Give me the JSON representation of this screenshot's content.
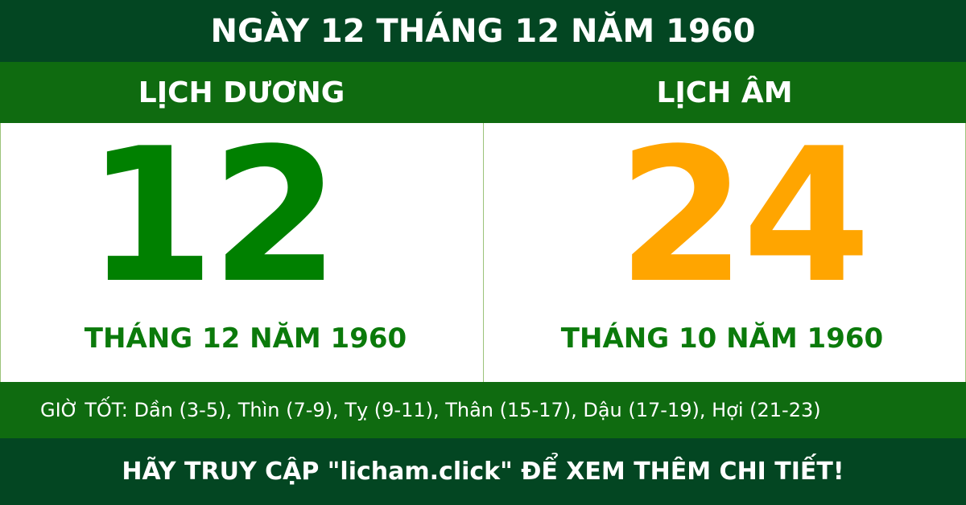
{
  "title": "NGÀY 12 THÁNG 12 NĂM 1960",
  "solar": {
    "label": "LỊCH DƯƠNG",
    "day": "12",
    "month_year": "THÁNG 12 NĂM 1960"
  },
  "lunar": {
    "label": "LỊCH ÂM",
    "day": "24",
    "month_year": "THÁNG 10 NĂM 1960"
  },
  "good_hours": "GIỜ TỐT: Dần (3-5), Thìn (7-9), Tỵ (9-11), Thân (15-17), Dậu (17-19), Hợi (21-23)",
  "footer": "HÃY TRUY CẬP \"licham.click\" ĐỂ XEM THÊM CHI TIẾT!",
  "colors": {
    "dark_green": "#034622",
    "green": "#0f6b10",
    "solar_number": "#008000",
    "lunar_number": "#ffa500"
  }
}
